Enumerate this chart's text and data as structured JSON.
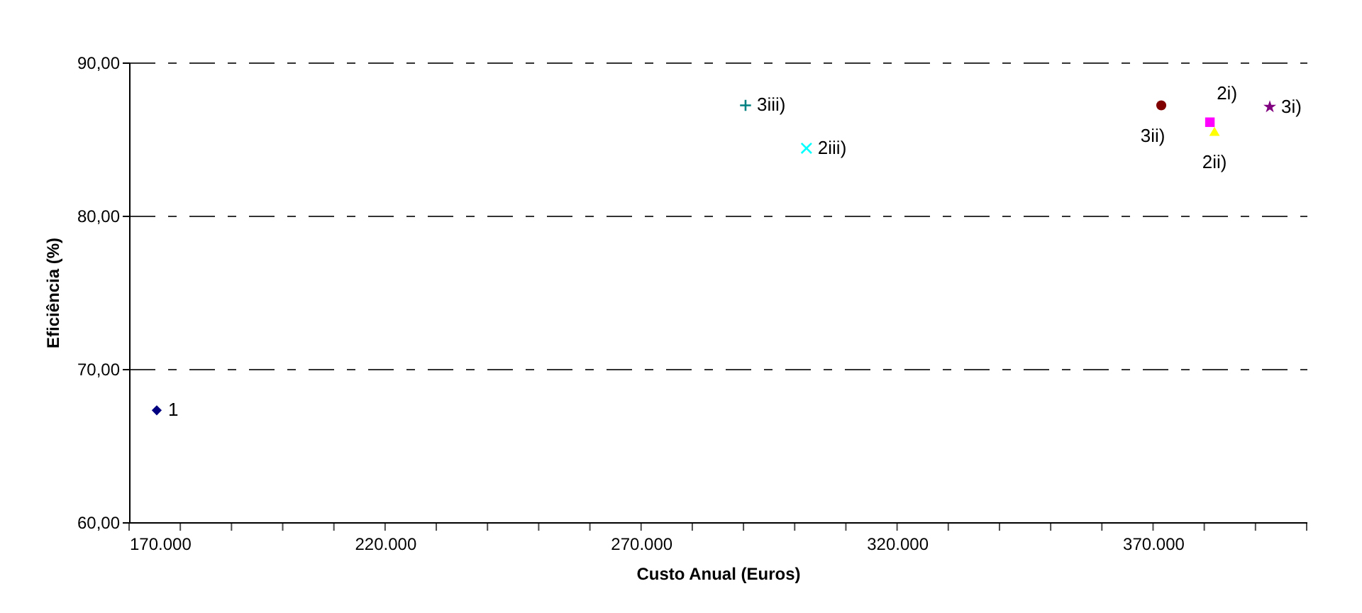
{
  "chart_data": {
    "type": "scatter",
    "xlabel": "Custo Anual (Euros)",
    "ylabel": "Eficiência (%)",
    "xlim": [
      170000,
      400000
    ],
    "ylim": [
      60,
      90
    ],
    "xticks": [
      {
        "value": 170000,
        "label": "170.000"
      },
      {
        "value": 180000,
        "label": null
      },
      {
        "value": 190000,
        "label": null
      },
      {
        "value": 200000,
        "label": null
      },
      {
        "value": 210000,
        "label": null
      },
      {
        "value": 220000,
        "label": "220.000"
      },
      {
        "value": 230000,
        "label": null
      },
      {
        "value": 240000,
        "label": null
      },
      {
        "value": 250000,
        "label": null
      },
      {
        "value": 260000,
        "label": null
      },
      {
        "value": 270000,
        "label": "270.000"
      },
      {
        "value": 280000,
        "label": null
      },
      {
        "value": 290000,
        "label": null
      },
      {
        "value": 300000,
        "label": null
      },
      {
        "value": 310000,
        "label": null
      },
      {
        "value": 320000,
        "label": "320.000"
      },
      {
        "value": 330000,
        "label": null
      },
      {
        "value": 340000,
        "label": null
      },
      {
        "value": 350000,
        "label": null
      },
      {
        "value": 360000,
        "label": null
      },
      {
        "value": 370000,
        "label": "370.000"
      },
      {
        "value": 380000,
        "label": null
      },
      {
        "value": 390000,
        "label": null
      },
      {
        "value": 400000,
        "label": null
      }
    ],
    "yticks": [
      {
        "value": 60,
        "label": "60,00"
      },
      {
        "value": 70,
        "label": "70,00"
      },
      {
        "value": 80,
        "label": "80,00"
      },
      {
        "value": 90,
        "label": "90,00"
      }
    ],
    "grid": "y",
    "series": [
      {
        "name": "1",
        "color": "#000080",
        "marker": "diamond",
        "x": [
          175400
        ],
        "values": [
          67.3
        ]
      },
      {
        "name": "2i)",
        "color": "#ff00ff",
        "marker": "square",
        "x": [
          381100
        ],
        "values": [
          86.1
        ]
      },
      {
        "name": "2ii)",
        "color": "#ffff00",
        "marker": "triangle",
        "x": [
          382000
        ],
        "values": [
          85.5
        ]
      },
      {
        "name": "2iii)",
        "color": "#00ffff",
        "marker": "x",
        "x": [
          302300
        ],
        "values": [
          84.4
        ]
      },
      {
        "name": "3i)",
        "color": "#800080",
        "marker": "star",
        "x": [
          392800
        ],
        "values": [
          87.1
        ]
      },
      {
        "name": "3ii)",
        "color": "#800000",
        "marker": "circle",
        "x": [
          371600
        ],
        "values": [
          87.2
        ]
      },
      {
        "name": "3iii)",
        "color": "#008080",
        "marker": "cross",
        "x": [
          290400
        ],
        "values": [
          87.2
        ]
      }
    ]
  }
}
